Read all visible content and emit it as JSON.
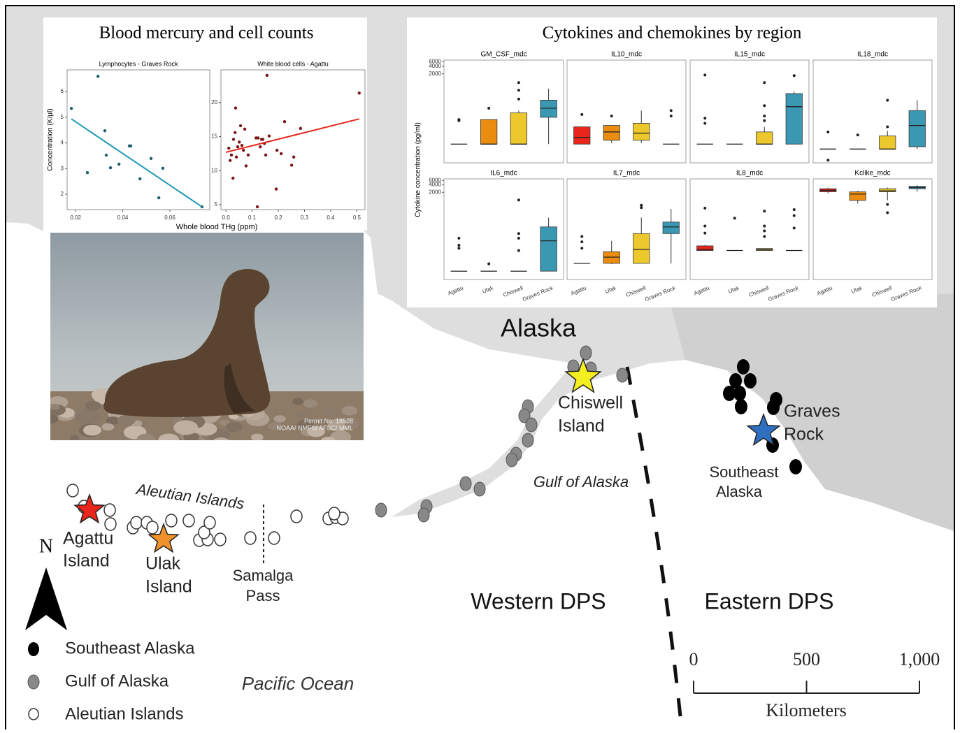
{
  "scatter_panel": {
    "title": "Blood mercury and cell counts",
    "y_label": "Concentration (K/µl)",
    "x_label": "Whole blood THg (ppm)",
    "plots": [
      {
        "type": "scatter",
        "title": "Lymphocytes - Graves Rock",
        "xlim": [
          0.0164,
          0.0769
        ],
        "ylim": [
          1.4,
          6.84
        ],
        "xticks": [
          0.02,
          0.04,
          0.06
        ],
        "yticks": [
          2,
          3,
          4,
          5,
          6
        ],
        "x": [
          0.0182,
          0.0295,
          0.025,
          0.0324,
          0.033,
          0.0348,
          0.0384,
          0.0428,
          0.0434,
          0.0473,
          0.052,
          0.0553,
          0.057,
          0.0736
        ],
        "y": [
          5.34,
          6.59,
          2.84,
          4.47,
          3.52,
          3.03,
          3.17,
          3.88,
          3.88,
          2.6,
          3.39,
          1.86,
          3.01,
          1.51
        ],
        "point_color": "#1d5f6e",
        "fit_x": [
          0.0182,
          0.0736
        ],
        "fit_y": [
          4.93,
          1.51
        ],
        "line_color": "#1f9bb5"
      },
      {
        "type": "scatter",
        "title": "White blood cells - Agattu",
        "xlim": [
          -0.019,
          0.531
        ],
        "ylim": [
          4.28,
          24.8
        ],
        "xticks": [
          {
            "value": 0,
            "label": "0.0"
          },
          0.1,
          0.2,
          0.3,
          0.4,
          0.5
        ],
        "yticks": [
          5,
          10,
          15,
          20
        ],
        "x": [
          0.011,
          0.016,
          0.021,
          0.027,
          0.029,
          0.035,
          0.037,
          0.04,
          0.045,
          0.051,
          0.056,
          0.061,
          0.067,
          0.072,
          0.077,
          0.085,
          0.12,
          0.115,
          0.123,
          0.131,
          0.136,
          0.141,
          0.147,
          0.152,
          0.157,
          0.165,
          0.192,
          0.195,
          0.211,
          0.224,
          0.251,
          0.259,
          0.285,
          0.509
        ],
        "y": [
          13.3,
          11.5,
          12.3,
          8.9,
          14.6,
          15.6,
          19.2,
          12.0,
          13.5,
          14.2,
          16.6,
          13.7,
          13.0,
          16.1,
          10.7,
          12.3,
          4.7,
          14.8,
          14.8,
          13.5,
          14.6,
          14.6,
          14.0,
          12.3,
          24.0,
          15.1,
          7.3,
          13.0,
          12.5,
          17.2,
          10.8,
          12.0,
          16.2,
          21.4
        ],
        "point_color": "#7a1616",
        "fit_x": [
          0,
          0.509
        ],
        "fit_y": [
          12.7,
          17.6
        ],
        "line_color": "#e3271d"
      }
    ]
  },
  "cytokine_panel": {
    "title": "Cytokines and chemokines by region",
    "y_label": "Cytokine concentration (pg/ml)",
    "categories": [
      "Agattu",
      "Ulak",
      "Chiswell",
      "Graves Rock"
    ],
    "colors": [
      "#e8261b",
      "#ea8c10",
      "#ecc82c",
      "#3a98b3"
    ],
    "log_scale": true,
    "ylim": [
      0.6,
      7000
    ],
    "yticks": [
      2000,
      4000,
      6000
    ],
    "panels": [
      {
        "title": "GM_CSF_mdc",
        "boxes": [
          {
            "low": 3.3,
            "q1": 3.3,
            "median": 3.3,
            "q3": 3.3,
            "high": 3.3,
            "outliers": [
              28,
              31
            ]
          },
          {
            "low": 3.3,
            "q1": 3.3,
            "median": 3.3,
            "q3": 31,
            "high": 31,
            "outliers": [
              87
            ]
          },
          {
            "low": 3.3,
            "q1": 3.3,
            "median": 3.3,
            "q3": 57,
            "high": 70,
            "outliers": [
              200,
              450,
              900
            ]
          },
          {
            "low": 3.3,
            "q1": 38,
            "median": 87,
            "q3": 180,
            "high": 520,
            "outliers": []
          }
        ]
      },
      {
        "title": "IL10_mdc",
        "boxes": [
          {
            "low": 3.3,
            "q1": 3.3,
            "median": 6.1,
            "q3": 16,
            "high": 16,
            "outliers": [
              49
            ]
          },
          {
            "low": 3.6,
            "q1": 4.7,
            "median": 10,
            "q3": 18,
            "high": 18,
            "outliers": [
              43
            ]
          },
          {
            "low": 3.6,
            "q1": 4.7,
            "median": 9,
            "q3": 22,
            "high": 70,
            "outliers": []
          },
          {
            "low": 3.3,
            "q1": 3.3,
            "median": 3.3,
            "q3": 3.3,
            "high": 3.3,
            "outliers": [
              43,
              70
            ]
          }
        ]
      },
      {
        "title": "IL15_mdc",
        "boxes": [
          {
            "low": 3.3,
            "q1": 3.3,
            "median": 3.3,
            "q3": 3.3,
            "high": 3.3,
            "outliers": [
              22,
              35,
              1800
            ]
          },
          {
            "low": 3.3,
            "q1": 3.3,
            "median": 3.3,
            "q3": 3.3,
            "high": 3.3,
            "outliers": []
          },
          {
            "low": 3.3,
            "q1": 3.3,
            "median": 3.3,
            "q3": 10,
            "high": 16,
            "outliers": [
              28,
              43,
              110,
              900
            ]
          },
          {
            "low": 3.3,
            "q1": 3.3,
            "median": 100,
            "q3": 330,
            "high": 400,
            "outliers": [
              1700
            ]
          }
        ]
      },
      {
        "title": "IL18_mdc",
        "boxes": [
          {
            "low": 2.1,
            "q1": 2.1,
            "median": 2.1,
            "q3": 2.1,
            "high": 2.1,
            "outliers": [
              0.77,
              10
            ]
          },
          {
            "low": 2.1,
            "q1": 2.1,
            "median": 2.1,
            "q3": 2.1,
            "high": 2.1,
            "outliers": [
              7.6
            ]
          },
          {
            "low": 2.1,
            "q1": 2.1,
            "median": 2.1,
            "q3": 7,
            "high": 11,
            "outliers": [
              16,
              180
            ]
          },
          {
            "low": 2.1,
            "q1": 2.6,
            "median": 18,
            "q3": 70,
            "high": 180,
            "outliers": []
          }
        ]
      },
      {
        "title": "IL6_mdc",
        "boxes": [
          {
            "low": 1.3,
            "q1": 1.3,
            "median": 1.3,
            "q3": 1.3,
            "high": 1.3,
            "outliers": [
              11,
              14.5,
              28
            ]
          },
          {
            "low": 1.3,
            "q1": 1.3,
            "median": 1.3,
            "q3": 1.3,
            "high": 1.3,
            "outliers": [
              2.6
            ]
          },
          {
            "low": 1.3,
            "q1": 1.3,
            "median": 1.3,
            "q3": 1.3,
            "high": 1.3,
            "outliers": [
              8.9,
              28,
              43,
              980
            ]
          },
          {
            "low": 1.3,
            "q1": 1.3,
            "median": 22,
            "q3": 80,
            "high": 190,
            "outliers": []
          }
        ]
      },
      {
        "title": "IL7_mdc",
        "boxes": [
          {
            "low": 2.7,
            "q1": 2.7,
            "median": 2.7,
            "q3": 2.7,
            "high": 2.7,
            "outliers": [
              11,
              20,
              33
            ]
          },
          {
            "low": 2.5,
            "q1": 2.7,
            "median": 4.8,
            "q3": 8,
            "high": 22,
            "outliers": []
          },
          {
            "low": 2.7,
            "q1": 2.7,
            "median": 10,
            "q3": 43,
            "high": 190,
            "outliers": [
              480,
              600
            ]
          },
          {
            "low": 2.7,
            "q1": 43,
            "median": 80,
            "q3": 126,
            "high": 430,
            "outliers": []
          }
        ]
      },
      {
        "title": "IL8_mdc",
        "boxes": [
          {
            "low": 8.9,
            "q1": 8.9,
            "median": 10,
            "q3": 13.7,
            "high": 15,
            "outliers": [
              45,
              87,
              460
            ]
          },
          {
            "low": 8.9,
            "q1": 8.9,
            "median": 8.9,
            "q3": 8.9,
            "high": 8.9,
            "outliers": [
              180
            ]
          },
          {
            "low": 8.9,
            "q1": 8.9,
            "median": 9.8,
            "q3": 10.7,
            "high": 10.7,
            "outliers": [
              33,
              55,
              87,
              350
            ]
          },
          {
            "low": 8.9,
            "q1": 8.9,
            "median": 8.9,
            "q3": 8.9,
            "high": 8.9,
            "outliers": [
              72,
              230,
              400
            ]
          }
        ]
      },
      {
        "title": "Kclike_mdc",
        "boxes": [
          {
            "low": 1800,
            "q1": 2100,
            "median": 2400,
            "q3": 2800,
            "high": 3100,
            "outliers": []
          },
          {
            "low": 700,
            "q1": 950,
            "median": 1700,
            "q3": 2100,
            "high": 2300,
            "outliers": []
          },
          {
            "low": 950,
            "q1": 2100,
            "median": 2300,
            "q3": 2800,
            "high": 3100,
            "outliers": [
              300,
              650
            ]
          },
          {
            "low": 2100,
            "q1": 2800,
            "median": 3100,
            "q3": 3500,
            "high": 3900,
            "outliers": []
          }
        ]
      }
    ]
  },
  "photo": {
    "caption": [
      "Permit No. 18528",
      "NOAA/ NMFS/ AFSC/ MML"
    ]
  },
  "map": {
    "region": "Alaska",
    "places": {
      "chiswell": [
        "Chiswell",
        "Island"
      ],
      "graves": [
        "Graves",
        "Rock"
      ],
      "southeast": [
        "Southeast",
        "Alaska"
      ],
      "agattu": [
        "Agattu",
        "Island"
      ],
      "ulak": [
        "Ulak",
        "Island"
      ],
      "samalga": [
        "Samalga",
        "Pass"
      ]
    },
    "gulf": "Gulf of Alaska",
    "aleutian": "Aleutian Islands",
    "western": "Western DPS",
    "eastern": "Eastern DPS",
    "ocean": "Pacific Ocean",
    "north": "N",
    "legend": [
      "Southeast Alaska",
      "Gulf of Alaska",
      "Aleutian Islands"
    ],
    "scale_bar": {
      "xlim": [
        0,
        1000
      ],
      "ticks": [
        0,
        500,
        {
          "value": 1000,
          "label": "1,000"
        }
      ],
      "label": "Kilometers"
    }
  }
}
